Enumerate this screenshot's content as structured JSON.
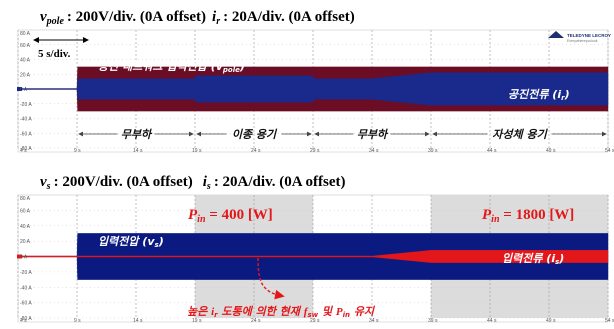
{
  "header_top": {
    "v_sym": "v",
    "v_sub": "pole",
    "v_text": ": 200V/div. (0A offset)",
    "i_sym": "i",
    "i_sub": "r",
    "i_text": ": 20A/div. (0A offset)"
  },
  "header_bottom": {
    "v_sym": "v",
    "v_sub": "s",
    "v_text": ": 200V/div. (0A offset)",
    "i_sym": "i",
    "i_sub": "s",
    "i_text": ": 20A/div. (0A offset)"
  },
  "time_scale": "5 s/div.",
  "logo": {
    "brand": "TELEDYNE LECROY",
    "tagline": "Everywhereyoulook"
  },
  "colors": {
    "voltage_top": "#6b0d24",
    "current_top": "#1a2a8c",
    "voltage_bottom": "#0b1a80",
    "current_bottom": "#e3171a",
    "shade_gray": "#dcdcdc",
    "arrow_red": "#e3171a"
  },
  "panels": [
    {
      "id": "top",
      "y_ticks": [
        "80 A",
        "60 A",
        "40 A",
        "20 A",
        "0 A",
        "-20 A",
        "-40 A",
        "-60 A",
        "-80 A"
      ],
      "x_ticks": [
        "4 s",
        "9 s",
        "14 s",
        "19 s",
        "24 s",
        "29 s",
        "34 s",
        "39 s",
        "44 s",
        "49 s",
        "54 s"
      ],
      "labels": {
        "voltage": "공진 네트워크 입력전압 (v",
        "voltage_sub": "pole",
        "voltage_end": ")",
        "current": "공진전류 (i",
        "current_sub": "r",
        "current_end": ")"
      },
      "phases": [
        {
          "label": "무부하",
          "start_s": 9,
          "end_s": 19
        },
        {
          "label": "이종 용기",
          "start_s": 19,
          "end_s": 29
        },
        {
          "label": "무부하",
          "start_s": 29,
          "end_s": 39
        },
        {
          "label": "자성체 용기",
          "start_s": 39,
          "end_s": 54
        }
      ]
    },
    {
      "id": "bottom",
      "y_ticks": [
        "80 A",
        "60 A",
        "40 A",
        "20 A",
        "0 A",
        "-20 A",
        "-40 A",
        "-60 A",
        "-80 A"
      ],
      "x_ticks": [
        "4 s",
        "9 s",
        "14 s",
        "19 s",
        "24 s",
        "29 s",
        "34 s",
        "39 s",
        "44 s",
        "49 s",
        "54 s"
      ],
      "labels": {
        "voltage": "입력전압 (v",
        "voltage_sub": "s",
        "voltage_end": ")",
        "current": "입력전류 (i",
        "current_sub": "s",
        "current_end": ")",
        "pin1_sym": "P",
        "pin1_sub": "in",
        "pin1_text": " = 400 [W]",
        "pin2_sym": "P",
        "pin2_sub": "in",
        "pin2_text": " = 1800 [W]",
        "note_a": "높은 ",
        "note_i": "i",
        "note_isub": "r",
        "note_b": " 도통에 의한 현재 ",
        "note_f": "f",
        "note_fsub": "sw",
        "note_c": " 및 ",
        "note_p": "P",
        "note_psub": "in",
        "note_d": " 유지"
      },
      "shaded_regions_s": [
        [
          19,
          29
        ],
        [
          39,
          54
        ]
      ]
    }
  ],
  "chart_data": [
    {
      "type": "line",
      "title": "",
      "xlabel": "",
      "ylabel": "",
      "x_unit": "s",
      "xlim": [
        4,
        54
      ],
      "ylim": [
        -80,
        80
      ],
      "x_ticks": [
        4,
        9,
        14,
        19,
        24,
        29,
        34,
        39,
        44,
        49,
        54
      ],
      "y_ticks": [
        80,
        60,
        40,
        20,
        0,
        -20,
        -40,
        -60,
        -80
      ],
      "grid": true,
      "series": [
        {
          "name": "v_pole",
          "kind": "envelope",
          "x": [
            4,
            9,
            9.05,
            19,
            29,
            34,
            39,
            54
          ],
          "upper": [
            0,
            0,
            30,
            30,
            30,
            30,
            30,
            30
          ],
          "lower": [
            0,
            0,
            -30,
            -30,
            -30,
            -30,
            -30,
            -30
          ]
        },
        {
          "name": "i_r",
          "kind": "envelope",
          "x": [
            4,
            9,
            9.05,
            19,
            19.05,
            29,
            29.05,
            34,
            39,
            54
          ],
          "upper": [
            0,
            0,
            14,
            14,
            18,
            18,
            14,
            14,
            22,
            22
          ],
          "lower": [
            0,
            0,
            -14,
            -14,
            -18,
            -18,
            -14,
            -14,
            -22,
            -22
          ]
        }
      ]
    },
    {
      "type": "line",
      "title": "",
      "xlabel": "",
      "ylabel": "",
      "x_unit": "s",
      "xlim": [
        4,
        54
      ],
      "ylim": [
        -80,
        80
      ],
      "x_ticks": [
        4,
        9,
        14,
        19,
        24,
        29,
        34,
        39,
        44,
        49,
        54
      ],
      "y_ticks": [
        80,
        60,
        40,
        20,
        0,
        -20,
        -40,
        -60,
        -80
      ],
      "grid": true,
      "series": [
        {
          "name": "v_s",
          "kind": "envelope",
          "x": [
            4,
            9,
            9.05,
            54
          ],
          "upper": [
            0,
            0,
            30,
            30
          ],
          "lower": [
            0,
            0,
            -30,
            -30
          ]
        },
        {
          "name": "i_s",
          "kind": "envelope",
          "x": [
            4,
            34,
            39,
            54
          ],
          "upper": [
            0.5,
            0.5,
            8,
            8
          ],
          "lower": [
            -0.5,
            -0.5,
            -8,
            -8
          ]
        }
      ]
    }
  ]
}
